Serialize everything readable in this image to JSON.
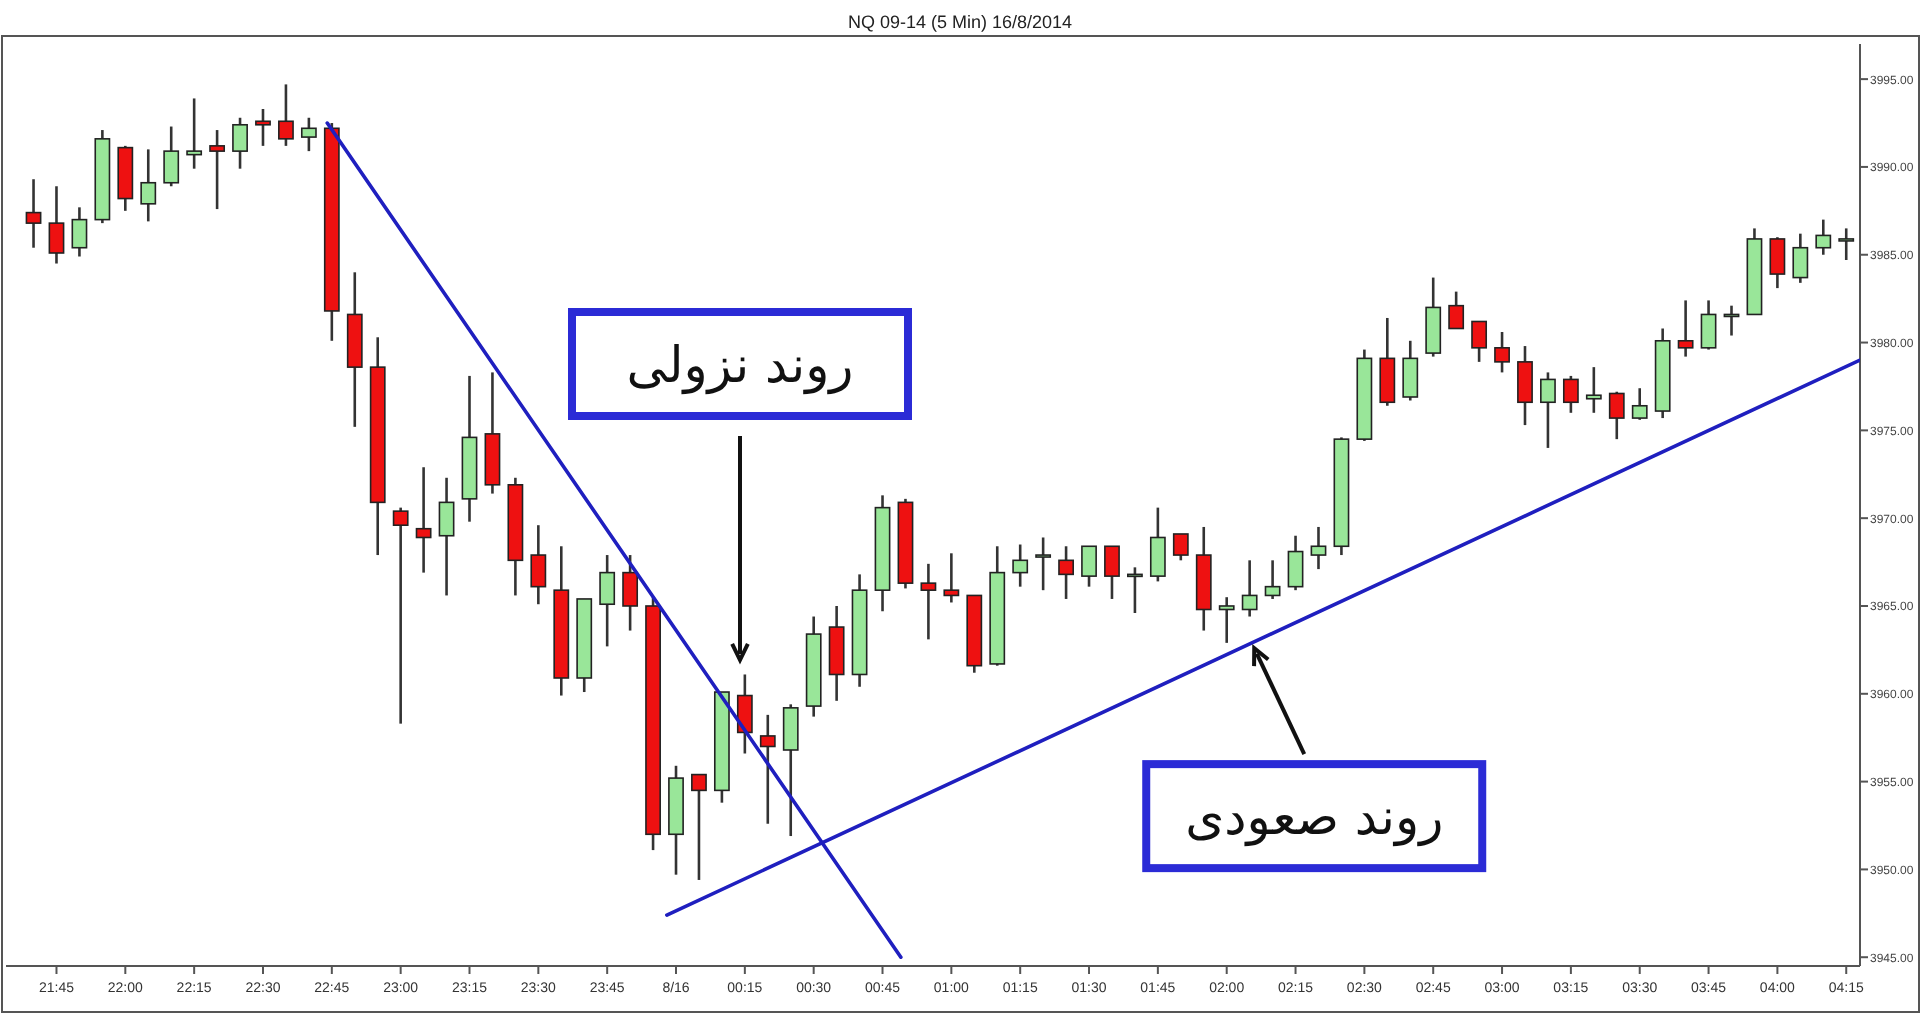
{
  "chart_data": {
    "type": "candlestick",
    "title": "NQ 09-14 (5 Min)  16/8/2014",
    "x": [
      "2014-08-15T21:40",
      "2014-08-15T21:45",
      "2014-08-15T21:50",
      "2014-08-15T21:55",
      "2014-08-15T22:00",
      "2014-08-15T22:05",
      "2014-08-15T22:10",
      "2014-08-15T22:15",
      "2014-08-15T22:20",
      "2014-08-15T22:25",
      "2014-08-15T22:30",
      "2014-08-15T22:35",
      "2014-08-15T22:40",
      "2014-08-15T22:45",
      "2014-08-15T22:50",
      "2014-08-15T22:55",
      "2014-08-15T23:00",
      "2014-08-15T23:05",
      "2014-08-15T23:10",
      "2014-08-15T23:15",
      "2014-08-15T23:20",
      "2014-08-15T23:25",
      "2014-08-15T23:30",
      "2014-08-15T23:35",
      "2014-08-15T23:40",
      "2014-08-15T23:45",
      "2014-08-15T23:50",
      "2014-08-15T23:55",
      "2014-08-16T00:00",
      "2014-08-16T00:05",
      "2014-08-16T00:10",
      "2014-08-16T00:15",
      "2014-08-16T00:20",
      "2014-08-16T00:25",
      "2014-08-16T00:30",
      "2014-08-16T00:35",
      "2014-08-16T00:40",
      "2014-08-16T00:45",
      "2014-08-16T00:50",
      "2014-08-16T00:55",
      "2014-08-16T01:00",
      "2014-08-16T01:05",
      "2014-08-16T01:10",
      "2014-08-16T01:15",
      "2014-08-16T01:20",
      "2014-08-16T01:25",
      "2014-08-16T01:30",
      "2014-08-16T01:35",
      "2014-08-16T01:40",
      "2014-08-16T01:45",
      "2014-08-16T01:50",
      "2014-08-16T01:55",
      "2014-08-16T02:00",
      "2014-08-16T02:05",
      "2014-08-16T02:10",
      "2014-08-16T02:15",
      "2014-08-16T02:20",
      "2014-08-16T02:25",
      "2014-08-16T02:30",
      "2014-08-16T02:35",
      "2014-08-16T02:40",
      "2014-08-16T02:45",
      "2014-08-16T02:50",
      "2014-08-16T02:55",
      "2014-08-16T03:00",
      "2014-08-16T03:05",
      "2014-08-16T03:10",
      "2014-08-16T03:15",
      "2014-08-16T03:20",
      "2014-08-16T03:25",
      "2014-08-16T03:30",
      "2014-08-16T03:35",
      "2014-08-16T03:40",
      "2014-08-16T03:45",
      "2014-08-16T03:50",
      "2014-08-16T03:55",
      "2014-08-16T04:00",
      "2014-08-16T04:05",
      "2014-08-16T04:10",
      "2014-08-16T04:15"
    ],
    "ohlc": [
      [
        3987.4,
        3989.3,
        3985.4,
        3986.8
      ],
      [
        3986.8,
        3988.9,
        3984.5,
        3985.1
      ],
      [
        3985.4,
        3987.7,
        3984.9,
        3987.0
      ],
      [
        3987.0,
        3992.1,
        3986.8,
        3991.6
      ],
      [
        3991.1,
        3991.2,
        3987.5,
        3988.2
      ],
      [
        3987.9,
        3991.0,
        3986.9,
        3989.1
      ],
      [
        3989.1,
        3992.3,
        3988.9,
        3990.9
      ],
      [
        3990.7,
        3993.9,
        3989.9,
        3990.9
      ],
      [
        3991.2,
        3992.1,
        3987.6,
        3990.9
      ],
      [
        3990.9,
        3992.8,
        3989.9,
        3992.4
      ],
      [
        3992.6,
        3993.3,
        3991.2,
        3992.4
      ],
      [
        3992.6,
        3994.7,
        3991.2,
        3991.6
      ],
      [
        3991.7,
        3992.8,
        3990.9,
        3992.2
      ],
      [
        3992.2,
        3992.5,
        3980.1,
        3981.8
      ],
      [
        3981.6,
        3984.0,
        3975.2,
        3978.6
      ],
      [
        3978.6,
        3980.3,
        3967.9,
        3970.9
      ],
      [
        3970.4,
        3970.6,
        3958.3,
        3969.6
      ],
      [
        3969.4,
        3972.9,
        3966.9,
        3968.9
      ],
      [
        3969.0,
        3972.3,
        3965.6,
        3970.9
      ],
      [
        3971.1,
        3978.1,
        3969.8,
        3974.6
      ],
      [
        3974.8,
        3978.3,
        3971.4,
        3971.9
      ],
      [
        3971.9,
        3972.3,
        3965.6,
        3967.6
      ],
      [
        3967.9,
        3969.6,
        3965.1,
        3966.1
      ],
      [
        3965.9,
        3968.4,
        3959.9,
        3960.9
      ],
      [
        3960.9,
        3965.4,
        3960.1,
        3965.4
      ],
      [
        3965.1,
        3967.9,
        3962.7,
        3966.9
      ],
      [
        3966.9,
        3967.9,
        3963.6,
        3965.0
      ],
      [
        3965.0,
        3965.5,
        3951.1,
        3952.0
      ],
      [
        3952.0,
        3955.9,
        3949.7,
        3955.2
      ],
      [
        3955.4,
        3955.4,
        3949.4,
        3954.5
      ],
      [
        3954.5,
        3960.1,
        3953.8,
        3960.1
      ],
      [
        3959.9,
        3961.1,
        3956.6,
        3957.8
      ],
      [
        3957.6,
        3958.8,
        3952.6,
        3957.0
      ],
      [
        3956.8,
        3959.4,
        3951.9,
        3959.2
      ],
      [
        3959.3,
        3964.4,
        3958.7,
        3963.4
      ],
      [
        3963.8,
        3965.0,
        3959.6,
        3961.1
      ],
      [
        3961.1,
        3966.8,
        3960.4,
        3965.9
      ],
      [
        3965.9,
        3971.3,
        3964.7,
        3970.6
      ],
      [
        3970.9,
        3971.1,
        3966.0,
        3966.3
      ],
      [
        3966.3,
        3967.4,
        3963.1,
        3965.9
      ],
      [
        3965.9,
        3968.0,
        3965.2,
        3965.6
      ],
      [
        3965.6,
        3965.6,
        3961.2,
        3961.6
      ],
      [
        3961.7,
        3968.4,
        3961.6,
        3966.9
      ],
      [
        3966.9,
        3968.5,
        3966.1,
        3967.6
      ],
      [
        3967.8,
        3968.9,
        3965.9,
        3967.9
      ],
      [
        3967.6,
        3968.4,
        3965.4,
        3966.8
      ],
      [
        3966.7,
        3968.4,
        3966.1,
        3968.4
      ],
      [
        3968.4,
        3968.4,
        3965.4,
        3966.7
      ],
      [
        3966.8,
        3967.2,
        3964.6,
        3966.8
      ],
      [
        3966.7,
        3970.6,
        3966.4,
        3968.9
      ],
      [
        3969.1,
        3969.1,
        3967.6,
        3967.9
      ],
      [
        3967.9,
        3969.5,
        3963.6,
        3964.8
      ],
      [
        3964.8,
        3965.5,
        3962.9,
        3965.0
      ],
      [
        3964.8,
        3967.6,
        3964.4,
        3965.6
      ],
      [
        3965.6,
        3967.6,
        3965.4,
        3966.1
      ],
      [
        3966.1,
        3969.0,
        3965.9,
        3968.1
      ],
      [
        3967.9,
        3969.5,
        3967.1,
        3968.4
      ],
      [
        3968.4,
        3974.6,
        3967.9,
        3974.5
      ],
      [
        3974.5,
        3979.6,
        3974.4,
        3979.1
      ],
      [
        3979.1,
        3981.4,
        3976.4,
        3976.6
      ],
      [
        3976.9,
        3980.1,
        3976.7,
        3979.1
      ],
      [
        3979.4,
        3983.7,
        3979.2,
        3982.0
      ],
      [
        3982.1,
        3982.9,
        3980.8,
        3980.8
      ],
      [
        3981.2,
        3981.2,
        3978.9,
        3979.7
      ],
      [
        3979.7,
        3980.6,
        3978.3,
        3978.9
      ],
      [
        3978.9,
        3979.8,
        3975.3,
        3976.6
      ],
      [
        3976.6,
        3978.3,
        3974.0,
        3977.9
      ],
      [
        3977.9,
        3978.1,
        3976.0,
        3976.6
      ],
      [
        3976.8,
        3978.6,
        3976.0,
        3977.0
      ],
      [
        3977.1,
        3977.2,
        3974.5,
        3975.7
      ],
      [
        3975.7,
        3977.4,
        3975.6,
        3976.4
      ],
      [
        3976.1,
        3980.8,
        3975.7,
        3980.1
      ],
      [
        3980.1,
        3982.4,
        3979.2,
        3979.7
      ],
      [
        3979.7,
        3982.4,
        3979.6,
        3981.6
      ],
      [
        3981.6,
        3982.1,
        3980.4,
        3981.6
      ],
      [
        3981.6,
        3986.5,
        3981.6,
        3985.9
      ],
      [
        3985.9,
        3986.0,
        3983.1,
        3983.9
      ],
      [
        3983.7,
        3986.2,
        3983.4,
        3985.4
      ],
      [
        3985.4,
        3987.0,
        3985.0,
        3986.1
      ],
      [
        3985.9,
        3986.5,
        3984.7,
        3985.9
      ]
    ],
    "colors": [
      "#ee1111",
      "#ee1111",
      "#99e699",
      "#99e699",
      "#ee1111",
      "#99e699",
      "#99e699",
      "#99e699",
      "#ee1111",
      "#99e699",
      "#ee1111",
      "#ee1111",
      "#99e699",
      "#ee1111",
      "#ee1111",
      "#ee1111",
      "#ee1111",
      "#ee1111",
      "#99e699",
      "#99e699",
      "#ee1111",
      "#ee1111",
      "#ee1111",
      "#ee1111",
      "#99e699",
      "#99e699",
      "#ee1111",
      "#ee1111",
      "#99e699",
      "#ee1111",
      "#99e699",
      "#ee1111",
      "#ee1111",
      "#99e699",
      "#99e699",
      "#ee1111",
      "#99e699",
      "#99e699",
      "#ee1111",
      "#ee1111",
      "#ee1111",
      "#ee1111",
      "#99e699",
      "#99e699",
      "#99e699",
      "#ee1111",
      "#99e699",
      "#ee1111",
      "#99e699",
      "#99e699",
      "#ee1111",
      "#ee1111",
      "#99e699",
      "#99e699",
      "#99e699",
      "#99e699",
      "#99e699",
      "#99e699",
      "#99e699",
      "#ee1111",
      "#99e699",
      "#99e699",
      "#ee1111",
      "#ee1111",
      "#ee1111",
      "#ee1111",
      "#99e699",
      "#ee1111",
      "#99e699",
      "#ee1111",
      "#99e699",
      "#99e699",
      "#ee1111",
      "#99e699",
      "#99e699",
      "#99e699",
      "#ee1111",
      "#99e699",
      "#99e699",
      "#99e699"
    ],
    "series": [
      {
        "type": "line",
        "color": "#1f1fbf",
        "x": [
          "2014-08-15T22:44",
          "2014-08-16T00:49"
        ],
        "values": [
          3992.5,
          3945.0
        ]
      },
      {
        "type": "line",
        "color": "#1f1fbf",
        "x": [
          "2014-08-15T23:58",
          "2014-08-16T04:18"
        ],
        "values": [
          3947.4,
          3979.0
        ]
      }
    ],
    "xlim": [
      "2014-08-15T21:34",
      "2014-08-16T04:18"
    ],
    "xticks": [
      {
        "value": "2014-08-15T21:45",
        "label": "21:45"
      },
      {
        "value": "2014-08-15T22:00",
        "label": "22:00"
      },
      {
        "value": "2014-08-15T22:15",
        "label": "22:15"
      },
      {
        "value": "2014-08-15T22:30",
        "label": "22:30"
      },
      {
        "value": "2014-08-15T22:45",
        "label": "22:45"
      },
      {
        "value": "2014-08-15T23:00",
        "label": "23:00"
      },
      {
        "value": "2014-08-15T23:15",
        "label": "23:15"
      },
      {
        "value": "2014-08-15T23:30",
        "label": "23:30"
      },
      {
        "value": "2014-08-15T23:45",
        "label": "23:45"
      },
      {
        "value": "2014-08-16T00:00",
        "label": "8/16"
      },
      {
        "value": "2014-08-16T00:15",
        "label": "00:15"
      },
      {
        "value": "2014-08-16T00:30",
        "label": "00:30"
      },
      {
        "value": "2014-08-16T00:45",
        "label": "00:45"
      },
      {
        "value": "2014-08-16T01:00",
        "label": "01:00"
      },
      {
        "value": "2014-08-16T01:15",
        "label": "01:15"
      },
      {
        "value": "2014-08-16T01:30",
        "label": "01:30"
      },
      {
        "value": "2014-08-16T01:45",
        "label": "01:45"
      },
      {
        "value": "2014-08-16T02:00",
        "label": "02:00"
      },
      {
        "value": "2014-08-16T02:15",
        "label": "02:15"
      },
      {
        "value": "2014-08-16T02:30",
        "label": "02:30"
      },
      {
        "value": "2014-08-16T02:45",
        "label": "02:45"
      },
      {
        "value": "2014-08-16T03:00",
        "label": "03:00"
      },
      {
        "value": "2014-08-16T03:15",
        "label": "03:15"
      },
      {
        "value": "2014-08-16T03:30",
        "label": "03:30"
      },
      {
        "value": "2014-08-16T03:45",
        "label": "03:45"
      },
      {
        "value": "2014-08-16T04:00",
        "label": "04:00"
      },
      {
        "value": "2014-08-16T04:15",
        "label": "04:15"
      }
    ],
    "ylim": [
      3944.5,
      3997
    ],
    "yticks": [
      {
        "value": 3945,
        "label": "3945.00"
      },
      {
        "value": 3950,
        "label": "3950.00"
      },
      {
        "value": 3955,
        "label": "3955.00"
      },
      {
        "value": 3960,
        "label": "3960.00"
      },
      {
        "value": 3965,
        "label": "3965.00"
      },
      {
        "value": 3970,
        "label": "3970.00"
      },
      {
        "value": 3975,
        "label": "3975.00"
      },
      {
        "value": 3980,
        "label": "3980.00"
      },
      {
        "value": 3985,
        "label": "3985.00"
      },
      {
        "value": 3990,
        "label": "3990.00"
      },
      {
        "value": 3995,
        "label": "3995.00"
      }
    ],
    "annotations": [
      "روند نزولی",
      {
        "text": "روند صعودی",
        "x": "2014-08-16T02:06",
        "y": 3962.6
      }
    ]
  }
}
